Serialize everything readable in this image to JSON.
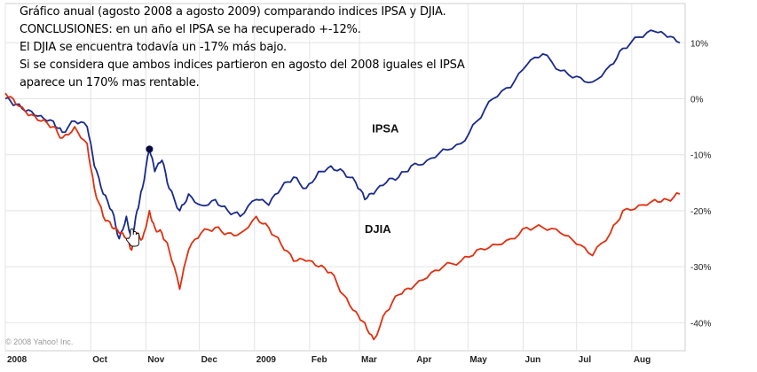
{
  "annotation_lines": [
    "Gráfico anual (agosto 2008 a agosto 2009)  comparando indices IPSA y DJIA.",
    "CONCLUSIONES: en un año el IPSA se ha recuperado +-12%.",
    "El DJIA  se encuentra todavía un -17% más bajo.",
    "Si se considera que ambos indices partieron en agosto del 2008 iguales el IPSA",
    "aparece  un 170% mas rentable."
  ],
  "copyright": "© 2008 Yahoo! Inc.",
  "colors": {
    "ipsa": "#1a2a8a",
    "djia": "#e03010",
    "grid": "#e4e4e4",
    "dot": "#0a0a40"
  },
  "chart_data": {
    "type": "line",
    "title": "",
    "xlabel": "",
    "ylabel": "",
    "ylim": [
      -45,
      17
    ],
    "y_ticks": [
      10,
      0,
      -10,
      -20,
      -30,
      -40
    ],
    "y_tick_labels": [
      "10%",
      "0%",
      "-10%",
      "-20%",
      "-30%",
      "-40%"
    ],
    "x_range": [
      "2008-08-14",
      "2009-08-31"
    ],
    "x_ticks": [
      {
        "date": "2008-08-14",
        "label": "2008"
      },
      {
        "date": "2008-10-01",
        "label": "Oct"
      },
      {
        "date": "2008-11-01",
        "label": "Nov"
      },
      {
        "date": "2008-12-01",
        "label": "Dec"
      },
      {
        "date": "2009-01-01",
        "label": "2009"
      },
      {
        "date": "2009-02-01",
        "label": "Feb"
      },
      {
        "date": "2009-03-01",
        "label": "Mar"
      },
      {
        "date": "2009-04-01",
        "label": "Apr"
      },
      {
        "date": "2009-05-01",
        "label": "May"
      },
      {
        "date": "2009-06-01",
        "label": "Jun"
      },
      {
        "date": "2009-07-01",
        "label": "Jul"
      },
      {
        "date": "2009-08-01",
        "label": "Aug"
      }
    ],
    "grid": true,
    "marker": {
      "series": "IPSA",
      "date": "2008-11-03",
      "value": -9
    },
    "series": [
      {
        "name": "IPSA",
        "points": [
          [
            "2008-08-14",
            0
          ],
          [
            "2008-08-20",
            -1
          ],
          [
            "2008-08-27",
            -2
          ],
          [
            "2008-09-03",
            -3
          ],
          [
            "2008-09-10",
            -4
          ],
          [
            "2008-09-15",
            -6
          ],
          [
            "2008-09-22",
            -4
          ],
          [
            "2008-09-29",
            -5
          ],
          [
            "2008-10-03",
            -12
          ],
          [
            "2008-10-08",
            -17
          ],
          [
            "2008-10-13",
            -20
          ],
          [
            "2008-10-17",
            -25
          ],
          [
            "2008-10-21",
            -21
          ],
          [
            "2008-10-24",
            -25
          ],
          [
            "2008-10-27",
            -20
          ],
          [
            "2008-10-30",
            -16
          ],
          [
            "2008-11-03",
            -9
          ],
          [
            "2008-11-06",
            -13
          ],
          [
            "2008-11-10",
            -11
          ],
          [
            "2008-11-14",
            -16
          ],
          [
            "2008-11-20",
            -20
          ],
          [
            "2008-11-25",
            -17
          ],
          [
            "2008-12-02",
            -19
          ],
          [
            "2008-12-10",
            -18
          ],
          [
            "2008-12-17",
            -20
          ],
          [
            "2008-12-24",
            -21
          ],
          [
            "2009-01-02",
            -18
          ],
          [
            "2009-01-09",
            -19
          ],
          [
            "2009-01-16",
            -16
          ],
          [
            "2009-01-23",
            -14
          ],
          [
            "2009-01-30",
            -16
          ],
          [
            "2009-02-06",
            -13
          ],
          [
            "2009-02-13",
            -12
          ],
          [
            "2009-02-20",
            -13
          ],
          [
            "2009-02-27",
            -15
          ],
          [
            "2009-03-04",
            -18
          ],
          [
            "2009-03-09",
            -17
          ],
          [
            "2009-03-16",
            -15
          ],
          [
            "2009-03-23",
            -14
          ],
          [
            "2009-03-30",
            -12
          ],
          [
            "2009-04-08",
            -11
          ],
          [
            "2009-04-17",
            -9
          ],
          [
            "2009-04-27",
            -8
          ],
          [
            "2009-05-06",
            -4
          ],
          [
            "2009-05-15",
            0
          ],
          [
            "2009-05-25",
            2
          ],
          [
            "2009-06-03",
            6
          ],
          [
            "2009-06-12",
            8
          ],
          [
            "2009-06-22",
            5
          ],
          [
            "2009-07-01",
            4
          ],
          [
            "2009-07-10",
            3
          ],
          [
            "2009-07-20",
            6
          ],
          [
            "2009-07-27",
            9
          ],
          [
            "2009-08-05",
            11
          ],
          [
            "2009-08-14",
            12
          ],
          [
            "2009-08-21",
            11
          ],
          [
            "2009-08-28",
            10
          ]
        ]
      },
      {
        "name": "DJIA",
        "points": [
          [
            "2008-08-14",
            1
          ],
          [
            "2008-08-20",
            -1
          ],
          [
            "2008-08-27",
            -3
          ],
          [
            "2008-09-03",
            -4
          ],
          [
            "2008-09-10",
            -5
          ],
          [
            "2008-09-15",
            -7
          ],
          [
            "2008-09-22",
            -5
          ],
          [
            "2008-09-29",
            -8
          ],
          [
            "2008-10-03",
            -16
          ],
          [
            "2008-10-08",
            -21
          ],
          [
            "2008-10-13",
            -23
          ],
          [
            "2008-10-17",
            -24
          ],
          [
            "2008-10-21",
            -25
          ],
          [
            "2008-10-24",
            -27
          ],
          [
            "2008-10-27",
            -24
          ],
          [
            "2008-10-30",
            -25
          ],
          [
            "2008-11-03",
            -20
          ],
          [
            "2008-11-06",
            -23
          ],
          [
            "2008-11-10",
            -24
          ],
          [
            "2008-11-14",
            -27
          ],
          [
            "2008-11-20",
            -34
          ],
          [
            "2008-11-25",
            -27
          ],
          [
            "2008-12-02",
            -24
          ],
          [
            "2008-12-10",
            -23
          ],
          [
            "2008-12-17",
            -24
          ],
          [
            "2008-12-24",
            -24
          ],
          [
            "2009-01-02",
            -21
          ],
          [
            "2009-01-09",
            -23
          ],
          [
            "2009-01-16",
            -26
          ],
          [
            "2009-01-23",
            -29
          ],
          [
            "2009-01-30",
            -29
          ],
          [
            "2009-02-06",
            -30
          ],
          [
            "2009-02-13",
            -31
          ],
          [
            "2009-02-20",
            -35
          ],
          [
            "2009-02-27",
            -38
          ],
          [
            "2009-03-04",
            -40
          ],
          [
            "2009-03-09",
            -43
          ],
          [
            "2009-03-16",
            -38
          ],
          [
            "2009-03-23",
            -35
          ],
          [
            "2009-03-30",
            -34
          ],
          [
            "2009-04-08",
            -32
          ],
          [
            "2009-04-17",
            -30
          ],
          [
            "2009-04-27",
            -29
          ],
          [
            "2009-05-06",
            -27
          ],
          [
            "2009-05-15",
            -26
          ],
          [
            "2009-05-25",
            -25
          ],
          [
            "2009-06-03",
            -23
          ],
          [
            "2009-06-12",
            -23
          ],
          [
            "2009-06-22",
            -24
          ],
          [
            "2009-07-01",
            -26
          ],
          [
            "2009-07-10",
            -28
          ],
          [
            "2009-07-20",
            -24
          ],
          [
            "2009-07-27",
            -20
          ],
          [
            "2009-08-05",
            -19
          ],
          [
            "2009-08-14",
            -18
          ],
          [
            "2009-08-21",
            -18
          ],
          [
            "2009-08-28",
            -17
          ]
        ]
      }
    ],
    "annotations": [
      {
        "text": "IPSA",
        "date": "2009-03-08",
        "value": -6
      },
      {
        "text": "DJIA",
        "date": "2009-03-04",
        "value": -24
      }
    ]
  }
}
